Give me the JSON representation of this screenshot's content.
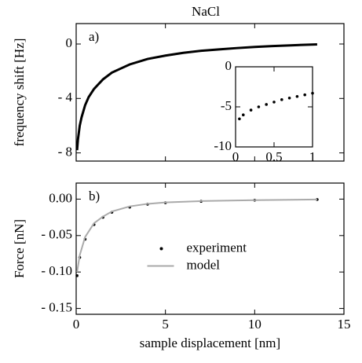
{
  "chart_data": [
    {
      "type": "line",
      "title": "NaCl",
      "annotation": "a)",
      "ylabel": "frequency shift [Hz]",
      "x": [
        0.05,
        0.1,
        0.2,
        0.3,
        0.5,
        0.7,
        1,
        1.5,
        2,
        2.5,
        3,
        4,
        5,
        6,
        7,
        8,
        9,
        10,
        11,
        12,
        13,
        13.5
      ],
      "values": [
        -7.8,
        -7.0,
        -6.0,
        -5.4,
        -4.5,
        -3.9,
        -3.3,
        -2.6,
        -2.1,
        -1.8,
        -1.5,
        -1.1,
        -0.85,
        -0.65,
        -0.5,
        -0.4,
        -0.3,
        -0.22,
        -0.15,
        -0.1,
        -0.05,
        -0.03
      ],
      "color": "#000000",
      "xlim": [
        0,
        15
      ],
      "xticks": [
        0,
        5,
        10,
        15
      ],
      "xtick_labels": false,
      "ylim": [
        -8.6,
        1.5
      ],
      "yticks": [
        0,
        {
          "value": -4,
          "label": "- 4"
        },
        {
          "value": -8,
          "label": "- 8"
        }
      ]
    },
    {
      "type": "scatter",
      "x": [
        0.05,
        0.1,
        0.2,
        0.3,
        0.4,
        0.5,
        0.6,
        0.7,
        0.8,
        0.9,
        1.0
      ],
      "values": [
        -6.5,
        -6.0,
        -5.4,
        -5.0,
        -4.7,
        -4.4,
        -4.1,
        -3.9,
        -3.7,
        -3.5,
        -3.3
      ],
      "color": "#000000",
      "xlim": [
        0,
        1
      ],
      "xticks": [
        0,
        0.5,
        1
      ],
      "xtick_labels": true,
      "ylim": [
        -10,
        0
      ],
      "yticks": [
        0,
        -5,
        -10
      ]
    },
    {
      "type": "line",
      "annotation": "b)",
      "ylabel": "Force [nN]",
      "xlabel": "sample displacement [nm]",
      "x": [
        0.05,
        0.2,
        0.5,
        1,
        1.5,
        2,
        3,
        4,
        5,
        7,
        10,
        13.5
      ],
      "series": [
        {
          "name": "experiment",
          "color": "#000000",
          "style": "points",
          "values": [
            -0.105,
            -0.08,
            -0.055,
            -0.035,
            -0.025,
            -0.018,
            -0.011,
            -0.007,
            -0.005,
            -0.003,
            -0.0015,
            -0.0005
          ]
        },
        {
          "name": "model",
          "color": "#aaaaaa",
          "style": "line",
          "values": [
            -0.1,
            -0.077,
            -0.052,
            -0.033,
            -0.024,
            -0.017,
            -0.01,
            -0.0065,
            -0.0045,
            -0.0027,
            -0.0014,
            -0.0005
          ]
        }
      ],
      "xlim": [
        0,
        15
      ],
      "xticks": [
        0,
        5,
        10,
        15
      ],
      "xtick_labels": true,
      "ylim": [
        -0.158,
        0.022
      ],
      "yticks": [
        {
          "value": 0,
          "label": "0.00"
        },
        {
          "value": -0.05,
          "label": "- 0.05"
        },
        {
          "value": -0.1,
          "label": "- 0.10"
        },
        {
          "value": -0.15,
          "label": "- 0.15"
        }
      ],
      "legend": "center"
    }
  ]
}
